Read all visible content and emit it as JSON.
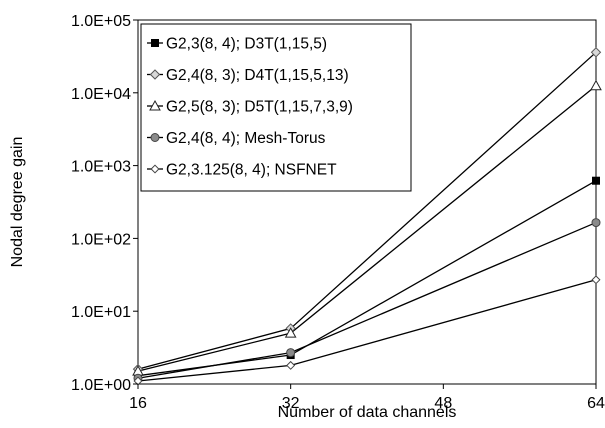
{
  "chart_data": {
    "type": "line",
    "xlabel": "Number of data channels",
    "ylabel": "Nodal degree gain",
    "x": [
      16,
      32,
      64
    ],
    "xticks": [
      "16",
      "32",
      "48",
      "64"
    ],
    "xlim": [
      16,
      64
    ],
    "yscale": "log",
    "yticks": [
      "1.0E+00",
      "1.0E+01",
      "1.0E+02",
      "1.0E+03",
      "1.0E+04",
      "1.0E+05"
    ],
    "ylim": [
      1,
      100000
    ],
    "grid": false,
    "legend_position": "top-left",
    "series": [
      {
        "name": "G2,3(8, 4); D3T(1,15,5)",
        "marker": "square-filled",
        "values": [
          1.3,
          2.5,
          620
        ]
      },
      {
        "name": "G2,4(8, 3); D4T(1,15,5,13)",
        "marker": "diamond-open",
        "values": [
          1.6,
          5.8,
          36000
        ]
      },
      {
        "name": "G2,5(8, 3); D5T(1,15,7,3,9)",
        "marker": "triangle-open",
        "values": [
          1.5,
          5.0,
          12500
        ]
      },
      {
        "name": "G2,4(8, 4); Mesh-Torus",
        "marker": "circle-gray",
        "values": [
          1.2,
          2.7,
          165
        ]
      },
      {
        "name": "G2,3.125(8, 4); NSFNET",
        "marker": "diamond-small",
        "values": [
          1.1,
          1.8,
          27
        ]
      }
    ]
  }
}
